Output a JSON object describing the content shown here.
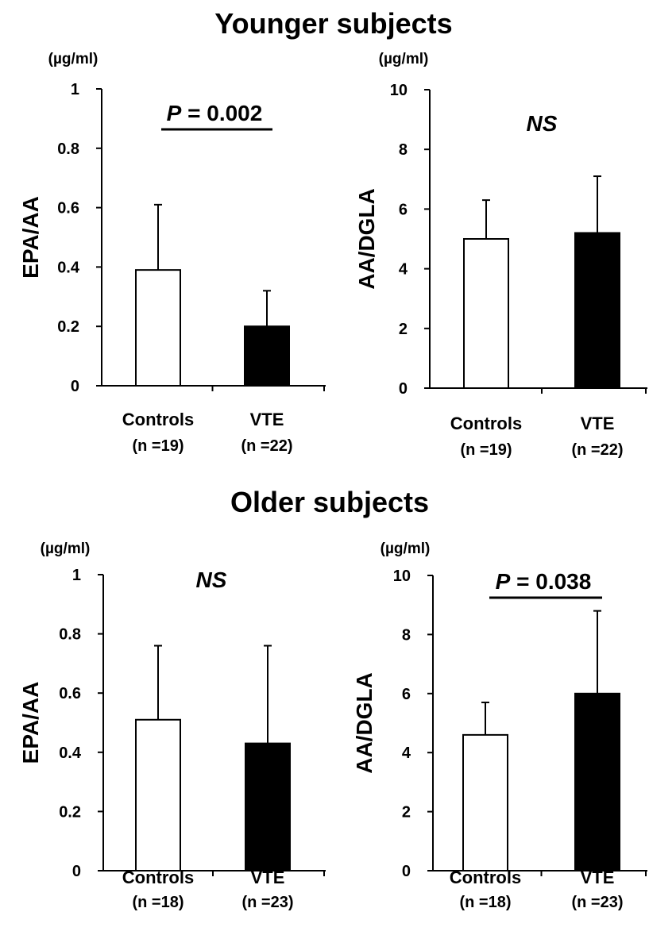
{
  "sections": [
    {
      "title": "Younger subjects"
    },
    {
      "title": "Older subjects"
    }
  ],
  "chart_data": [
    {
      "type": "bar",
      "section": "Younger subjects",
      "unit": "(µg/ml)",
      "ylabel": "EPA/AA",
      "ylim": [
        0,
        1
      ],
      "yticks": [
        0,
        0.2,
        0.4,
        0.6,
        0.8,
        1
      ],
      "yticklabels": [
        "0",
        "0.2",
        "0.4",
        "0.6",
        "0.8",
        "1"
      ],
      "categories": [
        "Controls",
        "VTE"
      ],
      "counts": [
        "(n =19)",
        "(n =22)"
      ],
      "values": [
        0.39,
        0.2
      ],
      "errors": [
        0.22,
        0.12
      ],
      "fills": [
        "#ffffff",
        "#000000"
      ],
      "annotation": {
        "prefix": "P",
        "rest": " = 0.002",
        "line": true
      }
    },
    {
      "type": "bar",
      "section": "Younger subjects",
      "unit": "(µg/ml)",
      "ylabel": "AA/DGLA",
      "ylim": [
        0,
        10
      ],
      "yticks": [
        0,
        2,
        4,
        6,
        8,
        10
      ],
      "yticklabels": [
        "0",
        "2",
        "4",
        "6",
        "8",
        "10"
      ],
      "categories": [
        "Controls",
        "VTE"
      ],
      "counts": [
        "(n =19)",
        "(n =22)"
      ],
      "values": [
        5.0,
        5.2
      ],
      "errors": [
        1.3,
        1.9
      ],
      "fills": [
        "#ffffff",
        "#000000"
      ],
      "annotation": {
        "prefix": "NS",
        "rest": "",
        "line": false
      }
    },
    {
      "type": "bar",
      "section": "Older subjects",
      "unit": "(µg/ml)",
      "ylabel": "EPA/AA",
      "ylim": [
        0,
        1
      ],
      "yticks": [
        0,
        0.2,
        0.4,
        0.6,
        0.8,
        1
      ],
      "yticklabels": [
        "0",
        "0.2",
        "0.4",
        "0.6",
        "0.8",
        "1"
      ],
      "categories": [
        "Controls",
        "VTE"
      ],
      "counts": [
        "(n =18)",
        "(n =23)"
      ],
      "values": [
        0.51,
        0.43
      ],
      "errors": [
        0.25,
        0.33
      ],
      "fills": [
        "#ffffff",
        "#000000"
      ],
      "annotation": {
        "prefix": "NS",
        "rest": "",
        "line": false
      }
    },
    {
      "type": "bar",
      "section": "Older subjects",
      "unit": "(µg/ml)",
      "ylabel": "AA/DGLA",
      "ylim": [
        0,
        10
      ],
      "yticks": [
        0,
        2,
        4,
        6,
        8,
        10
      ],
      "yticklabels": [
        "0",
        "2",
        "4",
        "6",
        "8",
        "10"
      ],
      "categories": [
        "Controls",
        "VTE"
      ],
      "counts": [
        "(n =18)",
        "(n =23)"
      ],
      "values": [
        4.6,
        6.0
      ],
      "errors": [
        1.1,
        2.8
      ],
      "fills": [
        "#ffffff",
        "#000000"
      ],
      "annotation": {
        "prefix": "P",
        "rest": " = 0.038",
        "line": true
      }
    }
  ]
}
